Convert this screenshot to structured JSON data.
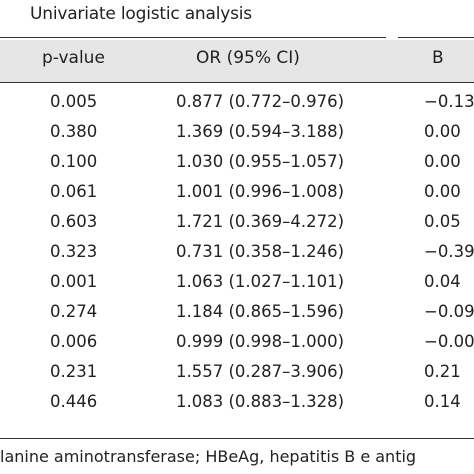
{
  "table": {
    "group_title": "Univariate logistic analysis",
    "headers": {
      "p": "p-value",
      "or": "OR (95% CI)",
      "b": "B"
    },
    "rows": [
      {
        "p": "0.005",
        "or": "0.877 (0.772–0.976)",
        "b": "−0.13"
      },
      {
        "p": "0.380",
        "or": "1.369 (0.594–3.188)",
        "b": "0.00"
      },
      {
        "p": "0.100",
        "or": "1.030 (0.955–1.057)",
        "b": "0.00"
      },
      {
        "p": "0.061",
        "or": "1.001 (0.996–1.008)",
        "b": "0.00"
      },
      {
        "p": "0.603",
        "or": "1.721 (0.369–4.272)",
        "b": "0.05"
      },
      {
        "p": "0.323",
        "or": "0.731 (0.358–1.246)",
        "b": "−0.39"
      },
      {
        "p": "0.001",
        "or": "1.063 (1.027–1.101)",
        "b": "0.04"
      },
      {
        "p": "0.274",
        "or": "1.184 (0.865–1.596)",
        "b": "−0.09"
      },
      {
        "p": "0.006",
        "or": "0.999 (0.998–1.000)",
        "b": "−0.00"
      },
      {
        "p": "0.231",
        "or": "1.557 (0.287–3.906)",
        "b": "0.21"
      },
      {
        "p": "0.446",
        "or": "1.083 (0.883–1.328)",
        "b": "0.14"
      }
    ]
  },
  "footnote": "lanine aminotransferase; HBeAg, hepatitis B e antig"
}
